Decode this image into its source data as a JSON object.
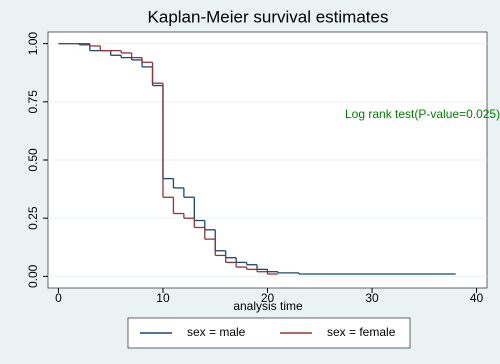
{
  "chart_data": {
    "type": "step",
    "title": "Kaplan-Meier survival estimates",
    "xlabel": "analysis time",
    "annotation": "Log rank test(P-value=0.025)",
    "xlim": [
      -1,
      41
    ],
    "ylim": [
      -0.05,
      1.05
    ],
    "xticks": [
      0,
      10,
      20,
      30,
      40
    ],
    "yticks": [
      {
        "value": 0,
        "label": "0.00"
      },
      {
        "value": 0.25,
        "label": "0.25"
      },
      {
        "value": 0.5,
        "label": "0.50"
      },
      {
        "value": 0.75,
        "label": "0.75"
      },
      {
        "value": 1,
        "label": "1.00"
      }
    ],
    "grid": true,
    "legend": "bottom",
    "series": [
      {
        "name": "sex = male",
        "color": "#1a476f",
        "x": [
          0,
          2,
          3,
          5,
          6,
          7,
          8,
          9,
          10,
          11,
          12,
          13,
          14,
          15,
          16,
          17,
          18,
          19,
          20,
          21,
          23,
          38
        ],
        "values": [
          1,
          0.995,
          0.97,
          0.95,
          0.94,
          0.93,
          0.9,
          0.82,
          0.42,
          0.38,
          0.34,
          0.24,
          0.2,
          0.11,
          0.08,
          0.06,
          0.05,
          0.03,
          0.02,
          0.015,
          0.01,
          0.01
        ]
      },
      {
        "name": "sex = female",
        "color": "#90353b",
        "x": [
          0,
          3,
          4,
          6,
          7,
          8,
          9,
          10,
          11,
          12,
          13,
          14,
          15,
          16,
          17,
          18,
          19,
          20,
          21
        ],
        "values": [
          1,
          0.99,
          0.97,
          0.96,
          0.94,
          0.92,
          0.83,
          0.34,
          0.27,
          0.25,
          0.21,
          0.16,
          0.09,
          0.06,
          0.04,
          0.03,
          0.02,
          0.01,
          0.01
        ]
      }
    ]
  }
}
